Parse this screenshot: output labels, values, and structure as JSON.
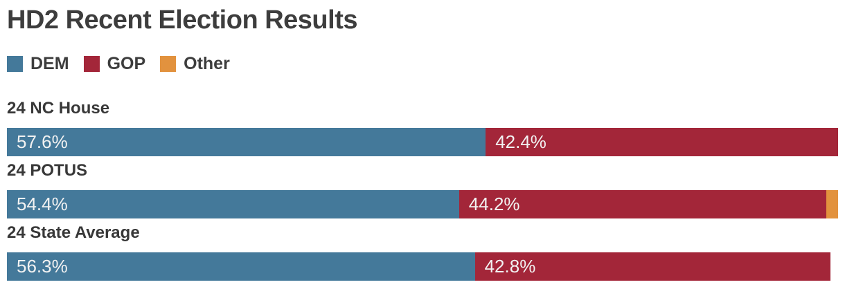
{
  "title": "HD2 Recent Election Results",
  "colors": {
    "dem": "#44799A",
    "gop": "#A32639",
    "other": "#E2923E",
    "heading_text": "#3D3D3D",
    "bar_value_text": "#F2F2F2",
    "background": "#FFFFFF"
  },
  "legend": {
    "items": [
      {
        "label": "DEM",
        "color": "#44799A"
      },
      {
        "label": "GOP",
        "color": "#A32639"
      },
      {
        "label": "Other",
        "color": "#E2923E"
      }
    ]
  },
  "chart_data": {
    "type": "bar",
    "variant": "horizontal-stacked",
    "title": "HD2 Recent Election Results",
    "unit": "percent",
    "xlim": [
      0,
      100
    ],
    "grid": false,
    "legend_position": "top",
    "value_labels": "inside-start",
    "categories": [
      "24 NC House",
      "24 POTUS",
      "24 State Average"
    ],
    "series": [
      {
        "name": "DEM",
        "color": "#44799A",
        "values": [
          57.6,
          54.4,
          56.3
        ]
      },
      {
        "name": "GOP",
        "color": "#A32639",
        "values": [
          42.4,
          44.2,
          42.8
        ]
      },
      {
        "name": "Other",
        "color": "#E2923E",
        "values": [
          0,
          1.4,
          0
        ]
      }
    ]
  },
  "rows": [
    {
      "label": "24 NC House",
      "segments": [
        {
          "series": "DEM",
          "value": 57.6,
          "display": "57.6%"
        },
        {
          "series": "GOP",
          "value": 42.4,
          "display": "42.4%"
        }
      ]
    },
    {
      "label": "24 POTUS",
      "segments": [
        {
          "series": "DEM",
          "value": 54.4,
          "display": "54.4%"
        },
        {
          "series": "GOP",
          "value": 44.2,
          "display": "44.2%"
        },
        {
          "series": "Other",
          "value": 1.4,
          "display": ""
        }
      ]
    },
    {
      "label": "24 State Average",
      "segments": [
        {
          "series": "DEM",
          "value": 56.3,
          "display": "56.3%"
        },
        {
          "series": "GOP",
          "value": 42.8,
          "display": "42.8%"
        }
      ]
    }
  ]
}
